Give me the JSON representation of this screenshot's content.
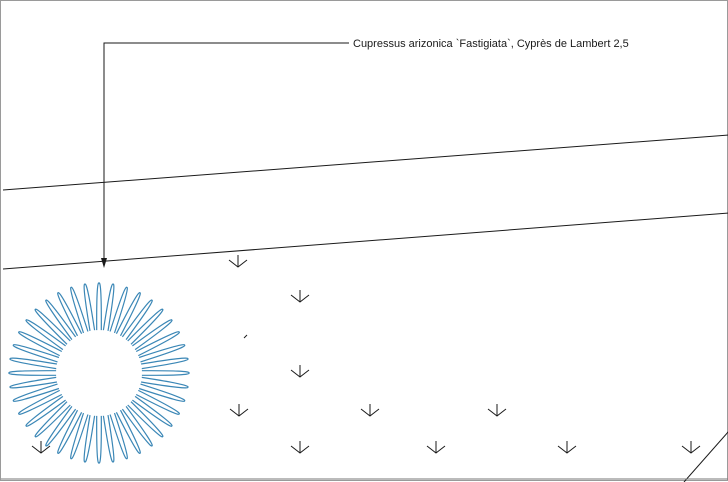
{
  "annotation": {
    "label": "Cupressus arizonica `Fastigiata`, Cyprès de Lambert 2,5"
  },
  "colors": {
    "line": "#1a1a1a",
    "plant_symbol": "#3b87b6",
    "background": "#ffffff"
  },
  "plant_symbol": {
    "type": "starburst-ring",
    "spikes": 40
  },
  "marker_symbol": {
    "type": "down-arrow-v",
    "count": 14
  }
}
